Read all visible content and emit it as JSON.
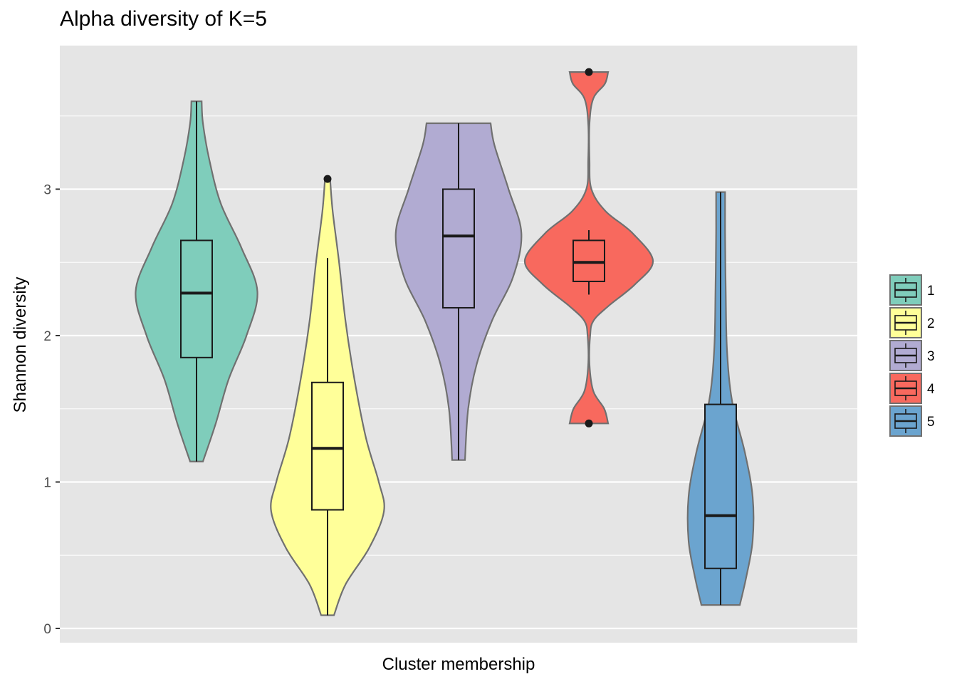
{
  "chart_data": {
    "type": "violin",
    "title": "Alpha diversity of K=5",
    "xlabel": "Cluster membership",
    "ylabel": "Shannon diversity",
    "ylim": [
      -0.1,
      4.1
    ],
    "yticks": [
      0,
      1,
      2,
      3
    ],
    "ytick_labels": [
      "0",
      "1",
      "2",
      "3"
    ],
    "grid": true,
    "legend_position": "right",
    "series": [
      {
        "name": "1",
        "color": "#7FCDBB",
        "min": 1.14,
        "q1": 1.85,
        "median": 2.29,
        "q3": 2.65,
        "max": 3.6,
        "whisker_low": 1.14,
        "whisker_high": 3.6,
        "outliers": [],
        "density": [
          [
            1.14,
            0.1
          ],
          [
            1.4,
            0.3
          ],
          [
            1.7,
            0.5
          ],
          [
            2.0,
            0.78
          ],
          [
            2.3,
            0.95
          ],
          [
            2.6,
            0.7
          ],
          [
            2.9,
            0.38
          ],
          [
            3.2,
            0.2
          ],
          [
            3.45,
            0.1
          ],
          [
            3.6,
            0.08
          ]
        ]
      },
      {
        "name": "2",
        "color": "#FFFF99",
        "min": 0.09,
        "q1": 0.81,
        "median": 1.23,
        "q3": 1.68,
        "max": 3.07,
        "whisker_low": 0.09,
        "whisker_high": 2.53,
        "outliers": [
          3.07
        ],
        "density": [
          [
            0.09,
            0.1
          ],
          [
            0.3,
            0.28
          ],
          [
            0.55,
            0.65
          ],
          [
            0.8,
            0.88
          ],
          [
            1.0,
            0.8
          ],
          [
            1.3,
            0.6
          ],
          [
            1.7,
            0.42
          ],
          [
            2.1,
            0.28
          ],
          [
            2.5,
            0.18
          ],
          [
            2.85,
            0.08
          ],
          [
            3.07,
            0.04
          ]
        ]
      },
      {
        "name": "3",
        "color": "#B1ABD2",
        "min": 1.15,
        "q1": 2.19,
        "median": 2.68,
        "q3": 3.0,
        "max": 3.45,
        "whisker_low": 1.15,
        "whisker_high": 3.45,
        "outliers": [],
        "density": [
          [
            1.15,
            0.1
          ],
          [
            1.5,
            0.15
          ],
          [
            1.8,
            0.28
          ],
          [
            2.1,
            0.52
          ],
          [
            2.4,
            0.85
          ],
          [
            2.7,
            0.98
          ],
          [
            3.0,
            0.78
          ],
          [
            3.3,
            0.56
          ],
          [
            3.45,
            0.5
          ]
        ]
      },
      {
        "name": "4",
        "color": "#F8695E",
        "min": 1.4,
        "q1": 2.37,
        "median": 2.5,
        "q3": 2.65,
        "max": 3.8,
        "whisker_low": 2.28,
        "whisker_high": 2.72,
        "outliers": [
          1.4,
          3.8
        ],
        "density": [
          [
            1.4,
            0.3
          ],
          [
            1.5,
            0.24
          ],
          [
            1.62,
            0.07
          ],
          [
            1.8,
            0.01
          ],
          [
            2.0,
            0.02
          ],
          [
            2.1,
            0.07
          ],
          [
            2.2,
            0.3
          ],
          [
            2.35,
            0.72
          ],
          [
            2.51,
            1.0
          ],
          [
            2.7,
            0.68
          ],
          [
            2.85,
            0.26
          ],
          [
            3.0,
            0.04
          ],
          [
            3.2,
            0.01
          ],
          [
            3.45,
            0.01
          ],
          [
            3.62,
            0.07
          ],
          [
            3.72,
            0.25
          ],
          [
            3.8,
            0.3
          ]
        ]
      },
      {
        "name": "5",
        "color": "#6BA4CF",
        "min": 0.16,
        "q1": 0.41,
        "median": 0.77,
        "q3": 1.53,
        "max": 2.98,
        "whisker_low": 0.16,
        "whisker_high": 2.98,
        "outliers": [],
        "density": [
          [
            0.16,
            0.3
          ],
          [
            0.35,
            0.4
          ],
          [
            0.6,
            0.5
          ],
          [
            0.9,
            0.5
          ],
          [
            1.2,
            0.38
          ],
          [
            1.55,
            0.18
          ],
          [
            1.9,
            0.1
          ],
          [
            2.3,
            0.08
          ],
          [
            2.7,
            0.07
          ],
          [
            2.98,
            0.07
          ]
        ]
      }
    ]
  }
}
